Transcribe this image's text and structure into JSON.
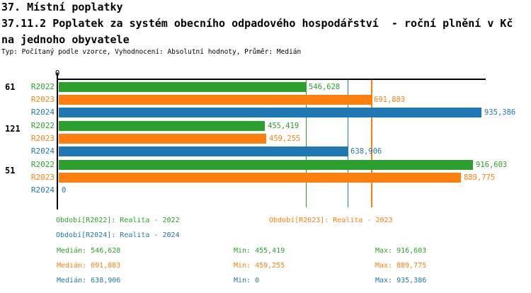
{
  "header": {
    "title_line1": "37. Místní poplatky",
    "title_line2": "37.11.2 Poplatek za systém obecního odpadového hospodářství  - roční plnění v Kč",
    "title_line3": "na jednoho obyvatele",
    "meta": "Typ: Počítaný podle vzorce, Vyhodnocení: Absolutní hodnoty, Průměr: Medián"
  },
  "colors": {
    "r2022": "#2ca02c",
    "r2023": "#ff7f0e",
    "r2024": "#1f77b4",
    "axis": "#000000"
  },
  "chart_data": {
    "type": "bar",
    "orientation": "horizontal",
    "unit": "Kč",
    "x_axis": {
      "min": 0,
      "tick_labels": [
        "0"
      ],
      "approx_max": 946000,
      "grid": false
    },
    "series_labels": [
      "R2022",
      "R2023",
      "R2024"
    ],
    "groups": [
      {
        "label": "61",
        "bars": [
          {
            "series": "R2022",
            "value": 546628,
            "value_label": "546,628"
          },
          {
            "series": "R2023",
            "value": 691883,
            "value_label": "691,883"
          },
          {
            "series": "R2024",
            "value": 935386,
            "value_label": "935,386"
          }
        ]
      },
      {
        "label": "121",
        "bars": [
          {
            "series": "R2022",
            "value": 455419,
            "value_label": "455,419"
          },
          {
            "series": "R2023",
            "value": 459255,
            "value_label": "459,255"
          },
          {
            "series": "R2024",
            "value": 638906,
            "value_label": "638,906"
          }
        ]
      },
      {
        "label": "51",
        "bars": [
          {
            "series": "R2022",
            "value": 916603,
            "value_label": "916,603"
          },
          {
            "series": "R2023",
            "value": 889775,
            "value_label": "889,775"
          },
          {
            "series": "R2024",
            "value": 0,
            "value_label": "0"
          }
        ]
      }
    ],
    "median_lines": [
      {
        "series": "R2022",
        "value": 546628
      },
      {
        "series": "R2023",
        "value": 691883
      },
      {
        "series": "R2024",
        "value": 638906
      }
    ]
  },
  "legend": {
    "r2022": "Období[R2022]: Realita - 2022",
    "r2023": "Období[R2023]: Realita - 2023",
    "r2024": "Období[R2024]: Realita - 2024"
  },
  "stats": [
    {
      "series": "R2022",
      "median": "Medián: 546,628",
      "min": "Min: 455,419",
      "max": "Max: 916,603"
    },
    {
      "series": "R2023",
      "median": "Medián: 691,883",
      "min": "Min: 459,255",
      "max": "Max: 889,775"
    },
    {
      "series": "R2024",
      "median": "Medián: 638,906",
      "min": "Min: 0",
      "max": "Max: 935,386"
    }
  ]
}
